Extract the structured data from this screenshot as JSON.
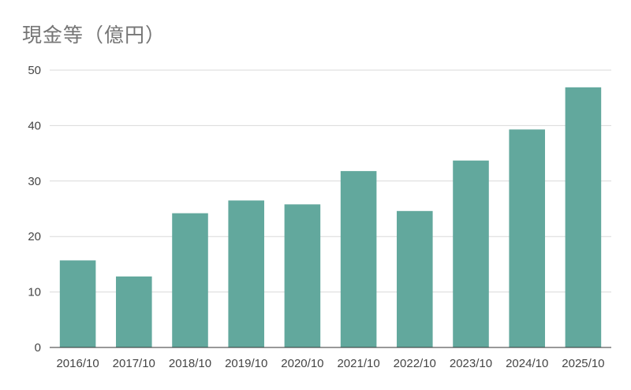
{
  "chart_data": {
    "type": "bar",
    "title": "現金等（億円）",
    "xlabel": "",
    "ylabel": "",
    "categories": [
      "2016/10",
      "2017/10",
      "2018/10",
      "2019/10",
      "2020/10",
      "2021/10",
      "2022/10",
      "2023/10",
      "2024/10",
      "2025/10"
    ],
    "values": [
      15.7,
      12.8,
      24.2,
      26.5,
      25.8,
      31.8,
      24.6,
      33.7,
      39.3,
      46.9
    ],
    "ylim": [
      0,
      50
    ],
    "yticks": [
      0,
      10,
      20,
      30,
      40,
      50
    ],
    "grid": true,
    "legend": "none",
    "colors": {
      "bar": "#62a89d",
      "grid": "#d9d9d9",
      "axis": "#333333",
      "title": "#757575",
      "tick_label": "#444444"
    }
  }
}
